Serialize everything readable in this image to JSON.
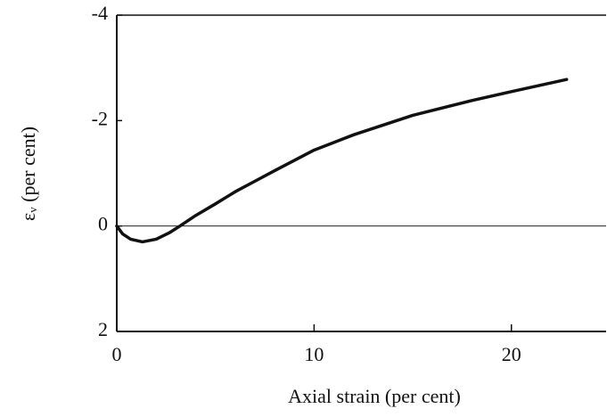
{
  "chart_data": {
    "type": "line",
    "xlabel": "Axial strain (per cent)",
    "ylabel": "εᵥ (per cent)",
    "x": [
      0,
      0.3,
      0.7,
      1.3,
      2,
      2.7,
      3.2,
      4,
      5,
      6,
      7,
      8,
      10,
      12,
      15,
      18,
      20,
      22.8
    ],
    "series": [
      {
        "color": "#111111",
        "values": [
          0,
          0.15,
          0.25,
          0.3,
          0.25,
          0.12,
          0,
          -0.2,
          -0.42,
          -0.65,
          -0.85,
          -1.05,
          -1.44,
          -1.73,
          -2.1,
          -2.38,
          -2.55,
          -2.78
        ]
      }
    ],
    "xlim": [
      0,
      24.8
    ],
    "xticks": [
      0,
      10,
      20
    ],
    "ylim": [
      -4,
      2
    ],
    "yticks": [
      -4,
      -2,
      0,
      2
    ],
    "y_inverted": true,
    "zero_line": true
  }
}
